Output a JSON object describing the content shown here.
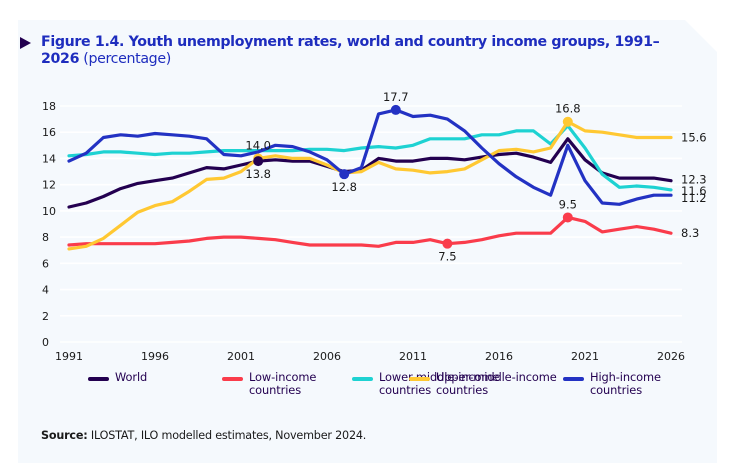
{
  "figure": {
    "title_bold": "Figure 1.4.  Youth unemployment rates, world and country income groups, 1991–2026",
    "title_unit": " (percentage)",
    "arrow_icon": "triangle-right-icon"
  },
  "source": {
    "label": "Source:",
    "text": " ILOSTAT, ILO modelled estimates, November 2024."
  },
  "colors": {
    "panel_bg": "#f5f9fd",
    "title": "#1e2dbe",
    "world": "#230050",
    "low_income": "#fa3c4b",
    "lower_middle_income": "#1ed2d2",
    "upper_middle_income": "#ffc832",
    "high_income": "#2332c3"
  },
  "chart_data": {
    "type": "line",
    "title": "Youth unemployment rates, world and country income groups, 1991–2026 (percentage)",
    "xlabel": "",
    "ylabel": "",
    "x": [
      1991,
      1992,
      1993,
      1994,
      1995,
      1996,
      1997,
      1998,
      1999,
      2000,
      2001,
      2002,
      2003,
      2004,
      2005,
      2006,
      2007,
      2008,
      2009,
      2010,
      2011,
      2012,
      2013,
      2014,
      2015,
      2016,
      2017,
      2018,
      2019,
      2020,
      2021,
      2022,
      2023,
      2024,
      2025,
      2026
    ],
    "xticks": [
      "1991",
      "1996",
      "2001",
      "2006",
      "2011",
      "2016",
      "2021",
      "2026"
    ],
    "yticks": [
      "0",
      "2",
      "4",
      "6",
      "8",
      "10",
      "12",
      "14",
      "16",
      "18"
    ],
    "ylim": [
      0,
      18
    ],
    "xlim": [
      1991,
      2026
    ],
    "grid": true,
    "legend_position": "bottom",
    "series": [
      {
        "key": "world",
        "name": "World",
        "legend_lines": [
          "World"
        ],
        "values": [
          10.3,
          10.6,
          11.1,
          11.7,
          12.1,
          12.3,
          12.5,
          12.9,
          13.3,
          13.2,
          13.5,
          13.8,
          13.9,
          13.8,
          13.8,
          13.4,
          13.0,
          13.1,
          14.0,
          13.8,
          13.8,
          14.0,
          14.0,
          13.9,
          14.1,
          14.3,
          14.4,
          14.1,
          13.7,
          15.5,
          13.9,
          12.9,
          12.5,
          12.5,
          12.5,
          12.3
        ]
      },
      {
        "key": "low_income",
        "name": "Low-income countries",
        "legend_lines": [
          "Low-income",
          "countries"
        ],
        "values": [
          7.4,
          7.5,
          7.5,
          7.5,
          7.5,
          7.5,
          7.6,
          7.7,
          7.9,
          8.0,
          8.0,
          7.9,
          7.8,
          7.6,
          7.4,
          7.4,
          7.4,
          7.4,
          7.3,
          7.6,
          7.6,
          7.8,
          7.5,
          7.6,
          7.8,
          8.1,
          8.3,
          8.3,
          8.3,
          9.5,
          9.2,
          8.4,
          8.6,
          8.8,
          8.6,
          8.3
        ]
      },
      {
        "key": "lower_middle_income",
        "name": "Lower-middle-income countries",
        "legend_lines": [
          "Lower-middle-income",
          "countries"
        ],
        "values": [
          14.2,
          14.3,
          14.5,
          14.5,
          14.4,
          14.3,
          14.4,
          14.4,
          14.5,
          14.6,
          14.6,
          14.6,
          14.6,
          14.6,
          14.7,
          14.7,
          14.6,
          14.8,
          14.9,
          14.8,
          15.0,
          15.5,
          15.5,
          15.5,
          15.8,
          15.8,
          16.1,
          16.1,
          15.1,
          16.5,
          14.8,
          12.8,
          11.8,
          11.9,
          11.8,
          11.6
        ]
      },
      {
        "key": "upper_middle_income",
        "name": "Upper-middle-income countries",
        "legend_lines": [
          "Upper-middle-income",
          "countries"
        ],
        "values": [
          7.1,
          7.3,
          7.9,
          8.9,
          9.9,
          10.4,
          10.7,
          11.5,
          12.4,
          12.5,
          13.0,
          14.0,
          14.2,
          14.0,
          14.0,
          13.5,
          12.9,
          13.0,
          13.7,
          13.2,
          13.1,
          12.9,
          13.0,
          13.2,
          13.9,
          14.6,
          14.7,
          14.5,
          14.8,
          16.8,
          16.1,
          16.0,
          15.8,
          15.6,
          15.6,
          15.6
        ]
      },
      {
        "key": "high_income",
        "name": "High-income countries",
        "legend_lines": [
          "High-income",
          "countries"
        ],
        "values": [
          13.8,
          14.4,
          15.6,
          15.8,
          15.7,
          15.9,
          15.8,
          15.7,
          15.5,
          14.3,
          14.2,
          14.5,
          15.0,
          14.9,
          14.5,
          13.9,
          12.8,
          13.3,
          17.4,
          17.7,
          17.2,
          17.3,
          17.0,
          16.1,
          14.8,
          13.6,
          12.6,
          11.8,
          11.2,
          15.0,
          12.3,
          10.6,
          10.5,
          10.9,
          11.2,
          11.2
        ]
      }
    ],
    "annotations": [
      {
        "series": "upper_middle_income",
        "year": 2002,
        "value": 14.0,
        "label": "14.0",
        "position": "above",
        "marker": true
      },
      {
        "series": "world",
        "year": 2002,
        "value": 13.8,
        "label": "13.8",
        "position": "below",
        "marker": true
      },
      {
        "series": "high_income",
        "year": 2007,
        "value": 12.8,
        "label": "12.8",
        "position": "below",
        "marker": true
      },
      {
        "series": "high_income",
        "year": 2010,
        "value": 17.7,
        "label": "17.7",
        "position": "above",
        "marker": true
      },
      {
        "series": "low_income",
        "year": 2013,
        "value": 7.5,
        "label": "7.5",
        "position": "below",
        "marker": true
      },
      {
        "series": "upper_middle_income",
        "year": 2020,
        "value": 16.8,
        "label": "16.8",
        "position": "above",
        "marker": true
      },
      {
        "series": "low_income",
        "year": 2020,
        "value": 9.5,
        "label": "9.5",
        "position": "above",
        "marker": true
      },
      {
        "series": "upper_middle_income",
        "year": 2026,
        "value": 15.6,
        "label": "15.6",
        "position": "right",
        "marker": false
      },
      {
        "series": "world",
        "year": 2026,
        "value": 12.3,
        "label": "12.3",
        "position": "right",
        "marker": false
      },
      {
        "series": "lower_middle_income",
        "year": 2026,
        "value": 11.6,
        "label": "11.6",
        "position": "right",
        "marker": false
      },
      {
        "series": "high_income",
        "year": 2026,
        "value": 11.2,
        "label": "11.2",
        "position": "right",
        "marker": false
      },
      {
        "series": "low_income",
        "year": 2026,
        "value": 8.3,
        "label": "8.3",
        "position": "right",
        "marker": false
      }
    ]
  }
}
